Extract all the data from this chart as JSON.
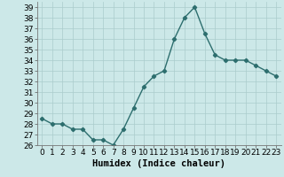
{
  "x": [
    0,
    1,
    2,
    3,
    4,
    5,
    6,
    7,
    8,
    9,
    10,
    11,
    12,
    13,
    14,
    15,
    16,
    17,
    18,
    19,
    20,
    21,
    22,
    23
  ],
  "y": [
    28.5,
    28.0,
    28.0,
    27.5,
    27.5,
    26.5,
    26.5,
    26.0,
    27.5,
    29.5,
    31.5,
    32.5,
    33.0,
    36.0,
    38.0,
    39.0,
    36.5,
    34.5,
    34.0,
    34.0,
    34.0,
    33.5,
    33.0,
    32.5
  ],
  "line_color": "#2d6e6e",
  "marker": "D",
  "marker_size": 2.2,
  "bg_color": "#cce8e8",
  "grid_color": "#aacccc",
  "xlabel": "Humidex (Indice chaleur)",
  "xlim": [
    -0.5,
    23.5
  ],
  "ylim": [
    26,
    39.5
  ],
  "yticks": [
    26,
    27,
    28,
    29,
    30,
    31,
    32,
    33,
    34,
    35,
    36,
    37,
    38,
    39
  ],
  "xticks": [
    0,
    1,
    2,
    3,
    4,
    5,
    6,
    7,
    8,
    9,
    10,
    11,
    12,
    13,
    14,
    15,
    16,
    17,
    18,
    19,
    20,
    21,
    22,
    23
  ],
  "tick_fontsize": 6.5,
  "xlabel_fontsize": 7.5,
  "linewidth": 1.0
}
